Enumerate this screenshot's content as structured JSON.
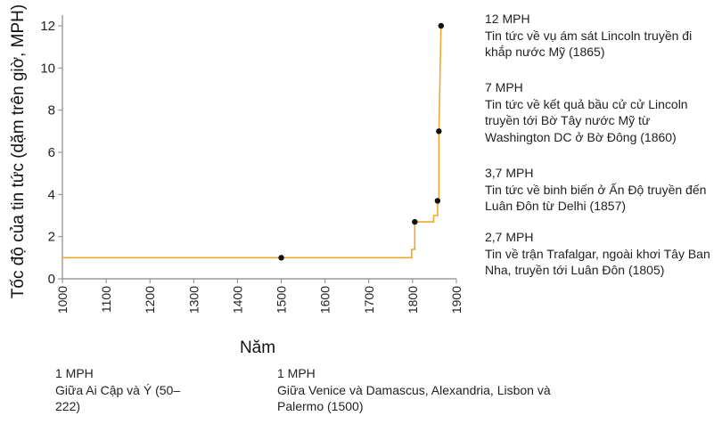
{
  "chart_data": {
    "type": "line",
    "title": "",
    "xlabel": "Năm",
    "ylabel": "Tốc độ của tin tức (dặm trên giờ, MPH)",
    "xlim": [
      1000,
      1900
    ],
    "ylim": [
      0,
      12
    ],
    "x_ticks": [
      "1000",
      "1100",
      "1200",
      "1300",
      "1400",
      "1500",
      "1600",
      "1700",
      "1800",
      "1900"
    ],
    "y_ticks": [
      "0",
      "2",
      "4",
      "6",
      "8",
      "10",
      "12"
    ],
    "grid": false,
    "line_color": "#f0a830",
    "point_color": "#111111",
    "series": [
      {
        "x": [
          1000,
          1798,
          1798,
          1805,
          1805,
          1848,
          1848,
          1857,
          1857,
          1860,
          1860,
          1865
        ],
        "y": [
          1,
          1,
          1.4,
          1.4,
          2.7,
          2.7,
          3.0,
          3.0,
          3.7,
          3.7,
          7,
          12
        ]
      }
    ],
    "points": [
      {
        "x": 1500,
        "y": 1
      },
      {
        "x": 1805,
        "y": 2.7
      },
      {
        "x": 1857,
        "y": 3.7
      },
      {
        "x": 1860,
        "y": 7
      },
      {
        "x": 1865,
        "y": 12
      }
    ]
  },
  "annotations": {
    "right": [
      {
        "heading": "12 MPH",
        "text": "Tin tức về vụ ám sát Lincoln truyền đi khắp nước Mỹ (1865)"
      },
      {
        "heading": "7 MPH",
        "text": "Tin tức về kết quả bầu cử cử Lincoln truyền tới Bờ Tây nước Mỹ từ Washington DC ở Bờ Đông (1860)"
      },
      {
        "heading": "3,7 MPH",
        "text": "Tin tức về binh biến ở Ấn Độ truyền đến Luân Đôn từ Delhi (1857)"
      },
      {
        "heading": "2,7 MPH",
        "text": "Tin về trận Trafalgar, ngoài khơi Tây Ban Nha, truyền tới Luân Đôn (1805)"
      }
    ],
    "bottom": [
      {
        "heading": "1 MPH",
        "text": "Giữa Ai Cập và Ý (50–222)"
      },
      {
        "heading": "1 MPH",
        "text": "Giữa Venice và Damascus, Alexandria, Lisbon và Palermo (1500)"
      }
    ]
  }
}
